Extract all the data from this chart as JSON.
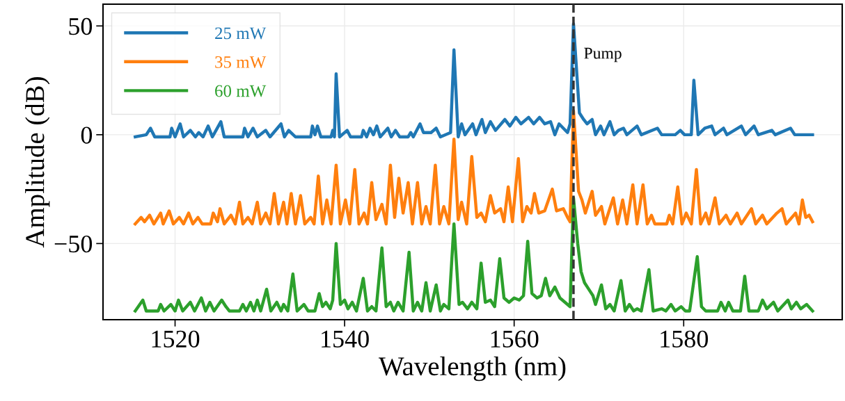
{
  "chart_data": {
    "type": "line",
    "xlabel": "Wavelength (nm)",
    "ylabel": "Amplitude (dB)",
    "xlim": [
      1511.5,
      1598.7
    ],
    "ylim": [
      -85,
      60
    ],
    "xticks": [
      1520,
      1540,
      1560,
      1580
    ],
    "yticks": [
      {
        "value": -50,
        "label": "−50"
      },
      0,
      50
    ],
    "grid": true,
    "legend": "top left",
    "line_style": "solid",
    "marker": "none",
    "ref_lines": [
      {
        "axis": "x",
        "value": 1567,
        "label": "Pump",
        "color": "#333333",
        "line_style": "dashed"
      }
    ],
    "series": [
      {
        "name": "25 mW",
        "color": "#1f77b4",
        "x": [
          1515.3,
          1516.6,
          1517.1,
          1517.6,
          1519.4,
          1519.6,
          1520.0,
          1520.6,
          1521.0,
          1521.8,
          1522.4,
          1522.8,
          1523.3,
          1523.9,
          1524.4,
          1525.4,
          1525.8,
          1528.0,
          1528.2,
          1528.6,
          1529.2,
          1529.7,
          1530.7,
          1531.2,
          1532.5,
          1532.9,
          1533.4,
          1534.2,
          1536.0,
          1536.2,
          1536.5,
          1536.8,
          1537.2,
          1538.4,
          1538.6,
          1538.8,
          1539.0,
          1539.4,
          1540.3,
          1540.7,
          1542.0,
          1542.2,
          1542.6,
          1543.0,
          1543.4,
          1543.8,
          1544.2,
          1545.1,
          1545.5,
          1546.0,
          1546.5,
          1547.5,
          1547.8,
          1548.1,
          1548.9,
          1549.3,
          1550.2,
          1550.8,
          1551.3,
          1552.5,
          1552.9,
          1553.4,
          1553.8,
          1554.2,
          1555.1,
          1555.5,
          1556.2,
          1556.6,
          1557.2,
          1557.8,
          1558.9,
          1559.5,
          1560.2,
          1560.8,
          1561.7,
          1562.3,
          1563.0,
          1563.6,
          1564.3,
          1564.8,
          1565.3,
          1566.3,
          1566.6,
          1567.0,
          1567.7,
          1568.2,
          1568.6,
          1569.2,
          1569.6,
          1570.2,
          1570.6,
          1571.3,
          1571.8,
          1572.3,
          1572.9,
          1573.3,
          1574.5,
          1575.0,
          1576.9,
          1577.4,
          1579.0,
          1579.6,
          1580.1,
          1580.9,
          1581.2,
          1581.7,
          1582.5,
          1583.3,
          1583.7,
          1584.7,
          1585.1,
          1586.8,
          1587.3,
          1588.3,
          1588.8,
          1590.4,
          1590.8,
          1592.6,
          1593.1,
          1594.9,
          1595.2
        ],
        "values": [
          -1,
          0,
          3,
          -1,
          -1,
          3,
          -1,
          5,
          -1,
          2,
          -1,
          1,
          -1,
          4,
          -1,
          6,
          -1,
          -1,
          3,
          -1,
          3,
          -1,
          2,
          -1,
          5,
          -1,
          2,
          -1,
          -1,
          4,
          0,
          4,
          -1,
          -1,
          2,
          -1,
          28,
          -1,
          2,
          -1,
          -1,
          2,
          -1,
          3,
          0,
          4,
          -1,
          3,
          -1,
          2,
          -1,
          -1,
          1,
          -1,
          5,
          1,
          1,
          3,
          -1,
          1,
          39,
          -1,
          5,
          0,
          5,
          0,
          7,
          1,
          6,
          2,
          7,
          4,
          8,
          5,
          8,
          5,
          8,
          5,
          6,
          0,
          5,
          1,
          5,
          51,
          10,
          7,
          5,
          7,
          0,
          4,
          0,
          6,
          0,
          2,
          3,
          0,
          4,
          0,
          3,
          0,
          0,
          2,
          0,
          0,
          25,
          0,
          3,
          4,
          0,
          3,
          0,
          4,
          0,
          4,
          0,
          2,
          0,
          3,
          0,
          0,
          0
        ]
      },
      {
        "name": "35 mW",
        "color": "#ff7f0e",
        "x": [
          1515.3,
          1516.0,
          1516.4,
          1517.0,
          1517.5,
          1518.3,
          1518.6,
          1519.3,
          1519.8,
          1520.5,
          1521.0,
          1521.6,
          1522.1,
          1522.7,
          1523.2,
          1524.2,
          1524.5,
          1525.0,
          1525.3,
          1525.8,
          1526.6,
          1527.1,
          1527.6,
          1528.0,
          1528.6,
          1529.1,
          1529.7,
          1530.1,
          1530.7,
          1531.2,
          1531.7,
          1532.2,
          1532.8,
          1533.2,
          1533.7,
          1534.2,
          1534.8,
          1535.3,
          1536.0,
          1536.4,
          1536.9,
          1537.4,
          1537.9,
          1538.4,
          1539.0,
          1539.5,
          1540.1,
          1540.6,
          1541.2,
          1541.7,
          1542.3,
          1542.7,
          1543.2,
          1543.7,
          1544.4,
          1544.9,
          1545.4,
          1545.9,
          1546.4,
          1546.9,
          1547.5,
          1548.0,
          1548.6,
          1549.1,
          1549.6,
          1550.1,
          1550.7,
          1551.2,
          1551.7,
          1552.3,
          1552.9,
          1553.4,
          1553.8,
          1554.4,
          1555.0,
          1555.6,
          1556.1,
          1556.6,
          1557.2,
          1557.7,
          1558.4,
          1558.8,
          1559.3,
          1559.8,
          1560.5,
          1561.0,
          1561.5,
          1562.0,
          1562.4,
          1562.9,
          1563.6,
          1564.5,
          1565.0,
          1565.8,
          1566.3,
          1566.6,
          1567.0,
          1567.6,
          1568.0,
          1568.4,
          1569.2,
          1569.6,
          1570.3,
          1570.7,
          1571.7,
          1572.2,
          1572.8,
          1573.3,
          1574.0,
          1574.5,
          1575.2,
          1575.7,
          1576.2,
          1576.6,
          1578.0,
          1578.3,
          1578.7,
          1579.3,
          1579.8,
          1580.3,
          1580.9,
          1581.5,
          1582.0,
          1582.6,
          1583.0,
          1583.7,
          1584.2,
          1585.0,
          1585.5,
          1586.3,
          1586.8,
          1588.0,
          1588.5,
          1589.3,
          1589.8,
          1591.0,
          1591.6,
          1592.1,
          1593.2,
          1593.6,
          1594.0,
          1594.4,
          1594.8,
          1595.2
        ],
        "values": [
          -41,
          -38,
          -40,
          -37,
          -41,
          -36,
          -41,
          -35,
          -41,
          -38,
          -41,
          -36,
          -41,
          -38,
          -41,
          -41,
          -36,
          -40,
          -34,
          -41,
          -37,
          -41,
          -31,
          -41,
          -38,
          -41,
          -31,
          -41,
          -36,
          -41,
          -27,
          -41,
          -31,
          -41,
          -27,
          -41,
          -28,
          -41,
          -38,
          -41,
          -19,
          -41,
          -30,
          -41,
          -14,
          -41,
          -30,
          -41,
          -16,
          -41,
          -36,
          -41,
          -22,
          -39,
          -32,
          -41,
          -14,
          -38,
          -20,
          -36,
          -22,
          -41,
          -22,
          -41,
          -33,
          -41,
          -14,
          -41,
          -33,
          -41,
          -2,
          -39,
          -31,
          -41,
          -10,
          -38,
          -36,
          -40,
          -28,
          -36,
          -34,
          -40,
          -24,
          -40,
          -11,
          -40,
          -33,
          -36,
          -27,
          -36,
          -35,
          -25,
          -35,
          -34,
          -38,
          -40,
          11,
          -26,
          -30,
          -36,
          -26,
          -37,
          -33,
          -41,
          -29,
          -41,
          -30,
          -41,
          -23,
          -41,
          -23,
          -41,
          -37,
          -41,
          -41,
          -37,
          -41,
          -24,
          -41,
          -36,
          -41,
          -16,
          -41,
          -36,
          -41,
          -29,
          -41,
          -37,
          -41,
          -36,
          -41,
          -34,
          -41,
          -37,
          -41,
          -36,
          -34,
          -41,
          -36,
          -41,
          -30,
          -38,
          -37,
          -40
        ]
      },
      {
        "name": "60 mW",
        "color": "#2ca02c",
        "x": [
          1515.3,
          1516.2,
          1516.6,
          1518.0,
          1518.3,
          1518.7,
          1519.5,
          1520.0,
          1520.4,
          1520.9,
          1521.8,
          1522.3,
          1523.1,
          1523.6,
          1524.1,
          1524.6,
          1525.5,
          1526.0,
          1526.4,
          1527.6,
          1528.0,
          1528.4,
          1528.9,
          1529.3,
          1529.7,
          1530.1,
          1530.8,
          1531.3,
          1532.0,
          1532.5,
          1532.8,
          1533.3,
          1533.9,
          1534.4,
          1535.2,
          1535.7,
          1536.5,
          1537.0,
          1537.4,
          1537.8,
          1538.3,
          1538.6,
          1539.0,
          1539.5,
          1540.0,
          1540.4,
          1540.9,
          1541.4,
          1542.2,
          1542.7,
          1543.2,
          1543.7,
          1544.4,
          1544.9,
          1545.4,
          1545.8,
          1546.3,
          1546.9,
          1547.6,
          1548.1,
          1548.6,
          1549.1,
          1549.6,
          1550.1,
          1550.8,
          1551.3,
          1551.7,
          1552.3,
          1552.9,
          1553.5,
          1553.9,
          1554.5,
          1555.0,
          1555.6,
          1556.1,
          1556.6,
          1557.2,
          1557.7,
          1558.3,
          1558.8,
          1559.4,
          1560.0,
          1560.6,
          1561.1,
          1561.6,
          1562.1,
          1562.7,
          1563.2,
          1563.7,
          1564.2,
          1564.8,
          1565.4,
          1566.0,
          1566.6,
          1567.0,
          1567.5,
          1567.9,
          1568.3,
          1568.8,
          1569.3,
          1569.6,
          1570.3,
          1570.8,
          1571.3,
          1571.8,
          1572.6,
          1573.1,
          1573.6,
          1574.1,
          1574.5,
          1575.0,
          1575.9,
          1576.4,
          1577.4,
          1577.9,
          1578.5,
          1579.0,
          1579.7,
          1580.2,
          1580.7,
          1581.6,
          1582.1,
          1582.6,
          1584.0,
          1584.4,
          1584.9,
          1585.3,
          1585.8,
          1586.7,
          1587.2,
          1587.7,
          1588.8,
          1589.3,
          1589.8,
          1590.6,
          1591.1,
          1592.3,
          1592.7,
          1593.3,
          1593.8,
          1594.5,
          1595.2
        ],
        "values": [
          -81,
          -76,
          -81,
          -81,
          -78,
          -81,
          -78,
          -81,
          -76,
          -81,
          -77,
          -81,
          -75,
          -81,
          -77,
          -81,
          -76,
          -79,
          -81,
          -81,
          -78,
          -81,
          -77,
          -81,
          -76,
          -81,
          -71,
          -81,
          -77,
          -81,
          -78,
          -81,
          -64,
          -81,
          -78,
          -81,
          -81,
          -73,
          -79,
          -77,
          -80,
          -76,
          -50,
          -78,
          -76,
          -80,
          -77,
          -81,
          -66,
          -81,
          -79,
          -81,
          -52,
          -79,
          -77,
          -81,
          -77,
          -81,
          -54,
          -81,
          -77,
          -81,
          -68,
          -81,
          -69,
          -81,
          -78,
          -80,
          -41,
          -78,
          -77,
          -80,
          -77,
          -80,
          -59,
          -77,
          -76,
          -79,
          -57,
          -75,
          -77,
          -75,
          -76,
          -74,
          -49,
          -73,
          -75,
          -74,
          -66,
          -74,
          -70,
          -75,
          -77,
          -79,
          -29,
          -50,
          -63,
          -68,
          -71,
          -74,
          -78,
          -69,
          -80,
          -78,
          -81,
          -67,
          -81,
          -78,
          -81,
          -80,
          -81,
          -62,
          -81,
          -80,
          -81,
          -78,
          -81,
          -79,
          -81,
          -81,
          -56,
          -79,
          -81,
          -81,
          -77,
          -81,
          -77,
          -81,
          -81,
          -65,
          -81,
          -81,
          -76,
          -80,
          -77,
          -81,
          -76,
          -80,
          -77,
          -80,
          -78,
          -81
        ]
      }
    ]
  }
}
